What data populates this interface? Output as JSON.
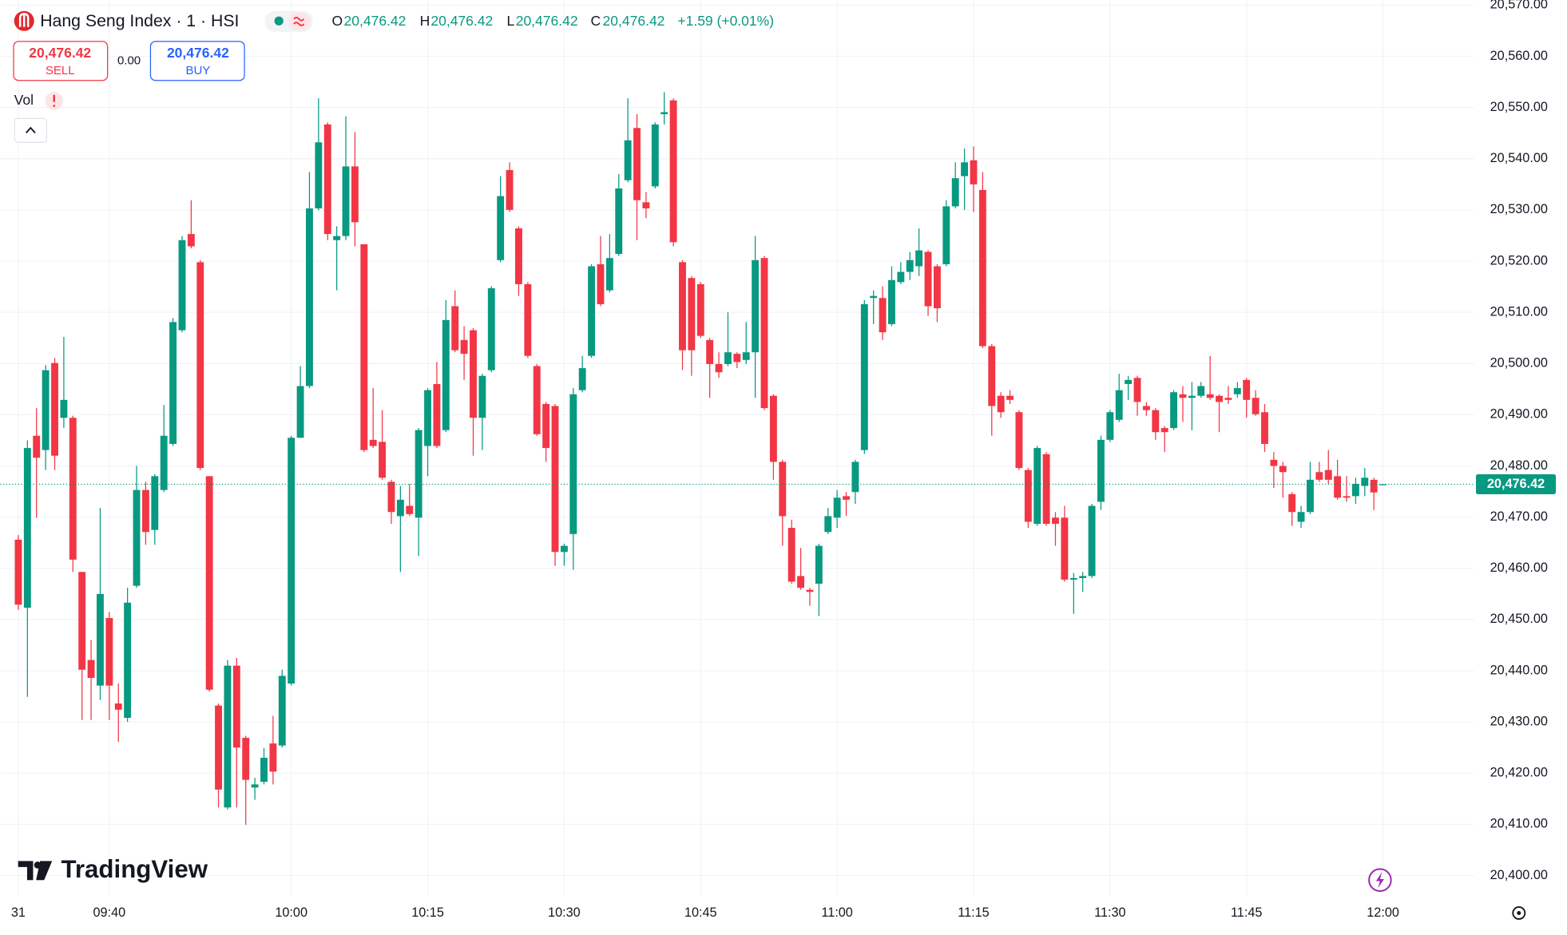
{
  "header": {
    "title": "Hang Seng Index · 1 · HSI",
    "ohlc": [
      {
        "key": "O",
        "value": "20,476.42"
      },
      {
        "key": "H",
        "value": "20,476.42"
      },
      {
        "key": "L",
        "value": "20,476.42"
      },
      {
        "key": "C",
        "value": "20,476.42"
      }
    ],
    "change": "+1.59 (+0.01%)",
    "sell": {
      "price": "20,476.42",
      "label": "SELL"
    },
    "spread": "0.00",
    "buy": {
      "price": "20,476.42",
      "label": "BUY"
    },
    "indicator": "Vol"
  },
  "watermark": "TradingView",
  "chart_data": {
    "type": "candlestick",
    "up_color": "#089981",
    "down_color": "#f23645",
    "grid": true,
    "x": [
      "09:30",
      "09:31",
      "09:32",
      "09:33",
      "09:34",
      "09:35",
      "09:36",
      "09:37",
      "09:38",
      "09:39",
      "09:40",
      "09:41",
      "09:42",
      "09:43",
      "09:44",
      "09:45",
      "09:46",
      "09:47",
      "09:48",
      "09:49",
      "09:50",
      "09:51",
      "09:52",
      "09:53",
      "09:54",
      "09:55",
      "09:56",
      "09:57",
      "09:58",
      "09:59",
      "10:00",
      "10:01",
      "10:02",
      "10:03",
      "10:04",
      "10:05",
      "10:06",
      "10:07",
      "10:08",
      "10:09",
      "10:10",
      "10:11",
      "10:12",
      "10:13",
      "10:14",
      "10:15",
      "10:16",
      "10:17",
      "10:18",
      "10:19",
      "10:20",
      "10:21",
      "10:22",
      "10:23",
      "10:24",
      "10:25",
      "10:26",
      "10:27",
      "10:28",
      "10:29",
      "10:30",
      "10:31",
      "10:32",
      "10:33",
      "10:34",
      "10:35",
      "10:36",
      "10:37",
      "10:38",
      "10:39",
      "10:40",
      "10:41",
      "10:42",
      "10:43",
      "10:44",
      "10:45",
      "10:46",
      "10:47",
      "10:48",
      "10:49",
      "10:50",
      "10:51",
      "10:52",
      "10:53",
      "10:54",
      "10:55",
      "10:56",
      "10:57",
      "10:58",
      "10:59",
      "11:00",
      "11:01",
      "11:02",
      "11:03",
      "11:04",
      "11:05",
      "11:06",
      "11:07",
      "11:08",
      "11:09",
      "11:10",
      "11:11",
      "11:12",
      "11:13",
      "11:14",
      "11:15",
      "11:16",
      "11:17",
      "11:18",
      "11:19",
      "11:20",
      "11:21",
      "11:22",
      "11:23",
      "11:24",
      "11:25",
      "11:26",
      "11:27",
      "11:28",
      "11:29",
      "11:30",
      "11:31",
      "11:32",
      "11:33",
      "11:34",
      "11:35",
      "11:36",
      "11:37",
      "11:38",
      "11:39",
      "11:40",
      "11:41",
      "11:42",
      "11:43",
      "11:44",
      "11:45",
      "11:46",
      "11:47",
      "11:48",
      "11:49",
      "11:50",
      "11:51",
      "11:52",
      "11:53",
      "11:54",
      "11:55",
      "11:56",
      "11:57",
      "11:58",
      "11:59",
      "12:00"
    ],
    "open": [
      20465.6,
      20452.3,
      20485.9,
      20483.1,
      20500.1,
      20489.4,
      20489.4,
      20459.3,
      20442.1,
      20437.1,
      20450.3,
      20433.6,
      20430.8,
      20456.6,
      20475.3,
      20467.5,
      20475.3,
      20484.3,
      20506.5,
      20525.3,
      20519.8,
      20478.0,
      20433.2,
      20413.3,
      20441.0,
      20426.9,
      20417.2,
      20418.3,
      20425.8,
      20425.4,
      20437.5,
      20485.5,
      20495.6,
      20530.3,
      20546.7,
      20524.1,
      20524.9,
      20538.5,
      20523.3,
      20485.1,
      20484.7,
      20476.9,
      20470.2,
      20472.2,
      20469.9,
      20483.9,
      20496.0,
      20487.0,
      20511.2,
      20504.6,
      20506.5,
      20489.4,
      20498.7,
      20520.2,
      20537.8,
      20526.4,
      20515.5,
      20499.5,
      20492.1,
      20491.7,
      20463.2,
      20466.7,
      20494.8,
      20501.5,
      20519.4,
      20514.3,
      20521.4,
      20535.8,
      20546.0,
      20531.5,
      20534.6,
      20548.7,
      20551.4,
      20519.8,
      20516.7,
      20515.5,
      20504.6,
      20499.9,
      20499.9,
      20501.9,
      20500.7,
      20502.2,
      20520.6,
      20493.7,
      20480.8,
      20467.9,
      20458.5,
      20455.8,
      20457.0,
      20467.1,
      20469.9,
      20474.1,
      20474.9,
      20483.1,
      20512.8,
      20512.8,
      20507.7,
      20515.9,
      20517.9,
      20519.0,
      20521.8,
      20519.0,
      20519.4,
      20530.7,
      20536.6,
      20539.7,
      20533.9,
      20503.4,
      20493.7,
      20493.7,
      20490.5,
      20479.2,
      20468.7,
      20482.3,
      20469.9,
      20469.9,
      20457.8,
      20458.1,
      20458.5,
      20473.0,
      20485.1,
      20489.0,
      20496.0,
      20497.2,
      20491.7,
      20490.9,
      20487.4,
      20487.4,
      20494.0,
      20493.3,
      20493.7,
      20494.0,
      20493.7,
      20493.3,
      20494.0,
      20496.8,
      20493.3,
      20490.5,
      20481.2,
      20480.0,
      20474.5,
      20469.1,
      20471.0,
      20478.8,
      20479.2,
      20478.0,
      20474.1,
      20474.1,
      20476.1,
      20477.3,
      20476.42
    ],
    "high": [
      20466.5,
      20485.0,
      20491.3,
      20499.7,
      20501.1,
      20505.2,
      20489.8,
      20459.3,
      20446.0,
      20471.8,
      20451.5,
      20437.5,
      20456.2,
      20480.0,
      20476.9,
      20478.4,
      20491.9,
      20508.9,
      20524.9,
      20531.9,
      20520.2,
      20478.0,
      20433.6,
      20442.1,
      20442.5,
      20427.3,
      20419.1,
      20424.9,
      20431.2,
      20440.2,
      20485.9,
      20499.5,
      20537.4,
      20551.8,
      20547.1,
      20526.8,
      20548.3,
      20545.2,
      20523.3,
      20495.2,
      20490.9,
      20477.3,
      20476.1,
      20476.5,
      20487.4,
      20495.2,
      20500.3,
      20512.4,
      20514.3,
      20507.3,
      20506.9,
      20498.0,
      20515.1,
      20536.6,
      20539.3,
      20526.8,
      20515.9,
      20499.9,
      20492.5,
      20492.1,
      20464.8,
      20495.2,
      20501.5,
      20519.4,
      20524.9,
      20525.3,
      20537.0,
      20551.8,
      20548.7,
      20533.5,
      20547.1,
      20553.0,
      20551.8,
      20520.2,
      20517.1,
      20515.9,
      20505.0,
      20502.2,
      20510.0,
      20502.2,
      20508.1,
      20524.9,
      20521.0,
      20494.0,
      20481.2,
      20469.5,
      20464.0,
      20456.2,
      20464.8,
      20471.8,
      20475.3,
      20474.9,
      20481.2,
      20512.4,
      20514.3,
      20515.1,
      20519.0,
      20519.8,
      20521.8,
      20526.4,
      20522.1,
      20519.4,
      20531.9,
      20539.3,
      20542.0,
      20542.4,
      20537.4,
      20503.8,
      20494.4,
      20494.8,
      20490.9,
      20479.6,
      20483.9,
      20482.7,
      20471.0,
      20472.2,
      20459.1,
      20459.3,
      20472.6,
      20485.9,
      20490.9,
      20498.0,
      20497.6,
      20497.6,
      20492.5,
      20491.3,
      20487.8,
      20494.8,
      20495.6,
      20496.4,
      20496.4,
      20501.5,
      20494.0,
      20495.6,
      20496.4,
      20497.2,
      20494.8,
      20492.1,
      20482.7,
      20480.8,
      20474.9,
      20472.2,
      20480.8,
      20480.8,
      20483.1,
      20481.2,
      20478.0,
      20477.7,
      20479.6,
      20477.7,
      20476.42
    ],
    "low": [
      20451.9,
      20434.9,
      20469.9,
      20479.2,
      20479.2,
      20487.4,
      20459.3,
      20430.4,
      20430.4,
      20434.3,
      20430.4,
      20426.1,
      20430.0,
      20456.2,
      20464.6,
      20464.6,
      20474.9,
      20483.9,
      20506.1,
      20522.5,
      20479.2,
      20435.9,
      20413.3,
      20412.9,
      20413.3,
      20409.9,
      20414.8,
      20417.8,
      20417.8,
      20425.0,
      20437.1,
      20485.5,
      20495.2,
      20529.9,
      20524.1,
      20514.3,
      20524.1,
      20522.9,
      20482.7,
      20483.5,
      20477.3,
      20468.7,
      20459.3,
      20470.2,
      20462.4,
      20478.0,
      20483.5,
      20486.6,
      20502.2,
      20496.8,
      20482.0,
      20483.1,
      20498.3,
      20519.8,
      20529.6,
      20513.2,
      20501.1,
      20485.9,
      20480.8,
      20460.5,
      20460.5,
      20459.7,
      20494.4,
      20501.1,
      20511.2,
      20513.9,
      20521.0,
      20535.4,
      20524.1,
      20528.4,
      20534.2,
      20546.7,
      20522.9,
      20498.7,
      20497.6,
      20505.0,
      20493.3,
      20497.2,
      20499.5,
      20499.1,
      20499.9,
      20493.3,
      20490.9,
      20477.3,
      20464.4,
      20457.0,
      20455.8,
      20452.7,
      20450.7,
      20466.7,
      20467.9,
      20470.2,
      20472.6,
      20482.3,
      20507.7,
      20504.6,
      20507.3,
      20515.5,
      20516.3,
      20517.1,
      20509.3,
      20508.1,
      20519.0,
      20530.3,
      20530.0,
      20529.6,
      20503.0,
      20485.9,
      20489.4,
      20492.1,
      20479.2,
      20467.9,
      20468.3,
      20468.3,
      20464.4,
      20457.4,
      20451.1,
      20455.4,
      20458.1,
      20471.4,
      20484.7,
      20488.6,
      20492.9,
      20489.8,
      20489.8,
      20485.1,
      20482.7,
      20487.0,
      20488.6,
      20487.0,
      20493.3,
      20492.9,
      20486.6,
      20492.1,
      20493.3,
      20489.4,
      20489.8,
      20482.7,
      20475.7,
      20473.8,
      20468.3,
      20467.9,
      20470.6,
      20476.9,
      20476.5,
      20473.4,
      20473.0,
      20472.6,
      20474.1,
      20471.4,
      20476.42
    ],
    "close": [
      20452.9,
      20483.5,
      20481.6,
      20498.7,
      20482.0,
      20492.9,
      20461.7,
      20440.2,
      20438.6,
      20455.0,
      20437.1,
      20432.4,
      20453.3,
      20475.3,
      20467.1,
      20478.0,
      20485.9,
      20508.1,
      20524.1,
      20522.9,
      20479.6,
      20436.3,
      20416.8,
      20441.0,
      20425.0,
      20418.7,
      20417.8,
      20423.0,
      20420.3,
      20439.0,
      20485.5,
      20495.6,
      20530.3,
      20543.2,
      20525.3,
      20524.9,
      20538.5,
      20527.6,
      20483.1,
      20483.9,
      20477.7,
      20471.0,
      20473.4,
      20470.6,
      20487.0,
      20494.8,
      20483.9,
      20508.5,
      20502.6,
      20501.9,
      20489.4,
      20497.6,
      20514.7,
      20532.7,
      20530.0,
      20515.5,
      20501.5,
      20486.2,
      20483.5,
      20463.2,
      20464.4,
      20494.0,
      20499.1,
      20519.0,
      20511.6,
      20520.6,
      20534.2,
      20543.6,
      20531.9,
      20530.3,
      20546.7,
      20549.1,
      20523.7,
      20502.6,
      20502.6,
      20505.4,
      20499.9,
      20498.3,
      20502.2,
      20500.3,
      20502.2,
      20520.2,
      20491.3,
      20480.8,
      20470.2,
      20457.4,
      20456.2,
      20455.4,
      20464.4,
      20470.2,
      20473.8,
      20473.4,
      20480.8,
      20511.6,
      20513.2,
      20506.1,
      20516.3,
      20517.9,
      20520.2,
      20522.1,
      20511.2,
      20510.8,
      20530.7,
      20536.2,
      20539.3,
      20535.0,
      20503.4,
      20491.7,
      20490.5,
      20492.9,
      20479.6,
      20469.1,
      20483.5,
      20468.7,
      20468.7,
      20457.8,
      20458.1,
      20458.5,
      20472.2,
      20485.1,
      20490.5,
      20494.8,
      20496.8,
      20492.5,
      20490.9,
      20486.6,
      20486.6,
      20494.4,
      20493.3,
      20493.7,
      20495.6,
      20493.3,
      20492.5,
      20492.9,
      20495.2,
      20492.9,
      20490.1,
      20484.3,
      20480.0,
      20478.8,
      20471.0,
      20471.0,
      20477.3,
      20477.3,
      20477.3,
      20473.8,
      20473.8,
      20476.5,
      20477.7,
      20474.83,
      20476.42
    ],
    "last_price": 20476.42,
    "last_price_label": "20,476.42",
    "xlim": [
      "09:28",
      "12:10"
    ],
    "xticks": [
      {
        "value": "09:30",
        "label": "31"
      },
      "09:40",
      "10:00",
      "10:15",
      "10:30",
      "10:45",
      "11:00",
      "11:15",
      "11:30",
      "11:45",
      "12:00"
    ],
    "ylim": [
      20396,
      20571
    ],
    "yticks": [
      {
        "value": 20400,
        "label": "20,400.00"
      },
      {
        "value": 20410,
        "label": "20,410.00"
      },
      {
        "value": 20420,
        "label": "20,420.00"
      },
      {
        "value": 20430,
        "label": "20,430.00"
      },
      {
        "value": 20440,
        "label": "20,440.00"
      },
      {
        "value": 20450,
        "label": "20,450.00"
      },
      {
        "value": 20460,
        "label": "20,460.00"
      },
      {
        "value": 20470,
        "label": "20,470.00"
      },
      {
        "value": 20480,
        "label": "20,480.00"
      },
      {
        "value": 20490,
        "label": "20,490.00"
      },
      {
        "value": 20500,
        "label": "20,500.00"
      },
      {
        "value": 20510,
        "label": "20,510.00"
      },
      {
        "value": 20520,
        "label": "20,520.00"
      },
      {
        "value": 20530,
        "label": "20,530.00"
      },
      {
        "value": 20540,
        "label": "20,540.00"
      },
      {
        "value": 20550,
        "label": "20,550.00"
      },
      {
        "value": 20560,
        "label": "20,560.00"
      },
      {
        "value": 20570,
        "label": "20,570.00"
      }
    ]
  }
}
